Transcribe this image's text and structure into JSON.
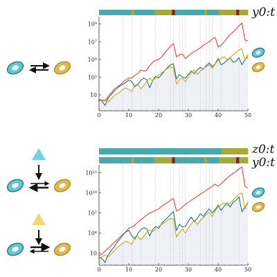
{
  "colors": {
    "teal": "#4aa8ad",
    "olive": "#a8a83a",
    "dark_red": "#8b1a1a",
    "red_line": "#e0473a",
    "teal_line": "#1f6f78",
    "gold_line": "#c9a227",
    "shade": "#eef0f5",
    "cell_cyan": "#5fc8d3",
    "cell_gold": "#e1b84b",
    "triangle_cyan": "#6dd3de",
    "triangle_gold": "#f3d27a"
  },
  "labels": {
    "top_seq": "y0:t",
    "bottom_z": "z0:t",
    "bottom_y": "y0:t"
  },
  "chart_data": [
    {
      "type": "line",
      "title": "",
      "xlabel": "",
      "ylabel": "",
      "x_ticks": [
        "0",
        "10",
        "20",
        "30",
        "40",
        "50"
      ],
      "y_ticks": [
        "10",
        "10³",
        "10⁵",
        "10⁷",
        "10⁹"
      ],
      "y_scale": "log",
      "xlim": [
        0,
        50
      ],
      "ylim_log10": [
        -0.8,
        9.6
      ],
      "x": [
        0,
        1,
        2,
        3,
        4,
        5,
        6,
        7,
        8,
        9,
        10,
        11,
        12,
        13,
        14,
        15,
        16,
        17,
        18,
        19,
        20,
        21,
        22,
        23,
        24,
        25,
        26,
        27,
        28,
        29,
        30,
        31,
        32,
        33,
        34,
        35,
        36,
        37,
        38,
        39,
        40,
        41,
        42,
        43,
        44,
        45,
        46,
        47,
        48,
        49,
        50
      ],
      "series": [
        {
          "values_log10": [
            0.5,
            0.4,
            0.3,
            0.8,
            1.2,
            1.6,
            1.9,
            2.1,
            2.4,
            2.7,
            2.9,
            2.9,
            3.2,
            3.4,
            3.8,
            3.7,
            3.8,
            4.3,
            4.7,
            4.9,
            5.0,
            5.3,
            5.7,
            6.1,
            6.5,
            6.8,
            5.3,
            5.5,
            5.6,
            5.1,
            5.4,
            5.7,
            5.9,
            6.1,
            6.3,
            6.6,
            6.8,
            7.0,
            7.3,
            7.5,
            6.4,
            6.6,
            7.0,
            7.4,
            7.8,
            8.1,
            8.4,
            8.8,
            9.1,
            7.2,
            7.1
          ]
        },
        {
          "values_log10": [
            0.4,
            0.3,
            -0.2,
            0.6,
            1.0,
            1.4,
            1.7,
            2.0,
            2.2,
            2.4,
            2.7,
            2.5,
            1.9,
            2.2,
            2.6,
            2.9,
            2.7,
            1.8,
            2.6,
            3.1,
            2.9,
            3.3,
            3.7,
            4.1,
            4.4,
            4.5,
            2.8,
            3.3,
            3.0,
            2.9,
            3.3,
            3.7,
            3.4,
            3.8,
            4.1,
            3.9,
            4.3,
            4.6,
            4.2,
            4.5,
            5.1,
            4.4,
            4.6,
            4.9,
            5.2,
            4.7,
            4.8,
            5.2,
            4.4,
            5.0,
            5.3
          ]
        },
        {
          "values_log10": [
            0.3,
            0.4,
            0.5,
            0.2,
            0.5,
            0.9,
            1.1,
            1.3,
            1.6,
            1.8,
            1.6,
            1.4,
            2.1,
            2.2,
            1.7,
            2.0,
            2.5,
            2.9,
            2.6,
            2.9,
            3.2,
            3.5,
            3.7,
            4.0,
            4.2,
            4.1,
            2.2,
            2.7,
            2.9,
            2.5,
            3.0,
            3.5,
            3.8,
            3.3,
            3.7,
            3.9,
            4.2,
            4.4,
            4.0,
            4.5,
            4.9,
            5.1,
            5.3,
            5.0,
            5.2,
            5.5,
            5.8,
            6.1,
            6.2,
            4.9,
            5.6
          ]
        }
      ],
      "states_above": [
        "teal",
        "teal",
        "teal",
        "teal",
        "teal",
        "teal",
        "teal",
        "teal",
        "teal",
        "teal",
        "teal",
        "olive",
        "teal",
        "teal",
        "teal",
        "teal",
        "teal",
        "teal",
        "teal",
        "olive",
        "olive",
        "olive",
        "olive",
        "olive",
        "olive",
        "dark_red",
        "teal",
        "teal",
        "teal",
        "teal",
        "teal",
        "teal",
        "teal",
        "teal",
        "teal",
        "teal",
        "olive",
        "teal",
        "teal",
        "teal",
        "teal",
        "olive",
        "olive",
        "olive",
        "olive",
        "olive",
        "olive",
        "dark_red",
        "olive",
        "olive",
        "olive"
      ],
      "vlines": [
        8,
        11,
        14,
        19,
        24,
        25,
        27,
        28,
        29,
        34,
        36,
        37,
        38,
        41,
        47
      ]
    },
    {
      "type": "line",
      "title": "",
      "xlabel": "",
      "ylabel": "",
      "x_ticks": [
        "0",
        "10",
        "20",
        "30",
        "40",
        "50"
      ],
      "y_ticks": [
        "10",
        "10⁴",
        "10⁷",
        "10¹⁰",
        "10¹³"
      ],
      "y_scale": "log",
      "xlim": [
        0,
        50
      ],
      "ylim_log10": [
        -0.8,
        14.2
      ],
      "x": [
        0,
        1,
        2,
        3,
        4,
        5,
        6,
        7,
        8,
        9,
        10,
        11,
        12,
        13,
        14,
        15,
        16,
        17,
        18,
        19,
        20,
        21,
        22,
        23,
        24,
        25,
        26,
        27,
        28,
        29,
        30,
        31,
        32,
        33,
        34,
        35,
        36,
        37,
        38,
        39,
        40,
        41,
        42,
        43,
        44,
        45,
        46,
        47,
        48,
        49,
        50
      ],
      "series": [
        {
          "values_log10": [
            0.6,
            0.9,
            1.3,
            1.7,
            2.1,
            2.6,
            3.0,
            3.4,
            3.8,
            4.2,
            4.7,
            4.9,
            5.2,
            5.6,
            6.0,
            6.3,
            6.7,
            7.0,
            7.2,
            7.4,
            7.6,
            8.0,
            8.3,
            8.6,
            8.9,
            9.2,
            7.3,
            7.5,
            7.9,
            8.3,
            8.6,
            8.9,
            9.2,
            9.5,
            9.8,
            10.1,
            10.4,
            10.7,
            11.0,
            11.3,
            11.0,
            11.4,
            11.8,
            12.2,
            12.6,
            12.9,
            13.2,
            13.6,
            13.9,
            11.0,
            10.7
          ]
        },
        {
          "values_log10": [
            0.4,
            0.2,
            -0.4,
            0.7,
            1.3,
            1.9,
            2.6,
            3.1,
            3.7,
            4.2,
            4.4,
            3.6,
            3.1,
            3.9,
            4.5,
            4.8,
            4.6,
            3.6,
            4.5,
            5.0,
            4.7,
            5.4,
            5.9,
            6.3,
            6.8,
            7.2,
            4.4,
            5.3,
            4.9,
            5.0,
            5.8,
            6.4,
            5.7,
            6.2,
            6.9,
            6.5,
            7.1,
            7.6,
            7.0,
            7.5,
            8.2,
            7.4,
            8.0,
            8.5,
            7.9,
            8.6,
            8.9,
            9.4,
            7.2,
            7.9,
            8.4
          ]
        },
        {
          "values_log10": [
            0.2,
            0.5,
            0.7,
            0.4,
            0.8,
            1.3,
            1.8,
            2.2,
            2.5,
            2.8,
            2.6,
            2.3,
            3.4,
            3.6,
            3.0,
            3.5,
            4.1,
            4.5,
            4.2,
            4.6,
            5.0,
            5.3,
            5.6,
            5.9,
            6.2,
            6.1,
            3.4,
            4.1,
            4.6,
            4.0,
            4.8,
            5.4,
            5.9,
            5.3,
            5.9,
            6.3,
            6.8,
            7.1,
            6.5,
            7.3,
            7.9,
            8.2,
            8.5,
            8.1,
            8.5,
            8.9,
            9.4,
            9.8,
            10.0,
            7.6,
            8.7
          ]
        }
      ],
      "states_z": [
        "teal",
        "teal",
        "teal",
        "teal",
        "teal",
        "teal",
        "teal",
        "teal",
        "teal",
        "teal",
        "teal",
        "teal",
        "teal",
        "teal",
        "teal",
        "teal",
        "teal",
        "teal",
        "teal",
        "teal",
        "teal",
        "teal",
        "teal",
        "teal",
        "teal",
        "teal",
        "teal",
        "teal",
        "teal",
        "teal",
        "teal",
        "teal",
        "teal",
        "teal",
        "teal",
        "teal",
        "teal",
        "teal",
        "teal",
        "teal",
        "teal",
        "teal",
        "olive",
        "olive",
        "olive",
        "olive",
        "olive",
        "olive",
        "olive",
        "olive",
        "olive"
      ],
      "states_y": [
        "teal",
        "teal",
        "teal",
        "teal",
        "teal",
        "teal",
        "teal",
        "teal",
        "teal",
        "teal",
        "teal",
        "olive",
        "teal",
        "teal",
        "teal",
        "teal",
        "teal",
        "teal",
        "teal",
        "olive",
        "olive",
        "olive",
        "olive",
        "olive",
        "olive",
        "dark_red",
        "teal",
        "teal",
        "teal",
        "teal",
        "teal",
        "teal",
        "teal",
        "teal",
        "teal",
        "teal",
        "olive",
        "teal",
        "teal",
        "teal",
        "teal",
        "olive",
        "olive",
        "olive",
        "olive",
        "olive",
        "olive",
        "dark_red",
        "olive",
        "olive",
        "olive"
      ],
      "vlines": [
        8,
        11,
        14,
        19,
        24,
        25,
        27,
        28,
        29,
        34,
        36,
        37,
        38,
        41,
        47
      ]
    }
  ]
}
